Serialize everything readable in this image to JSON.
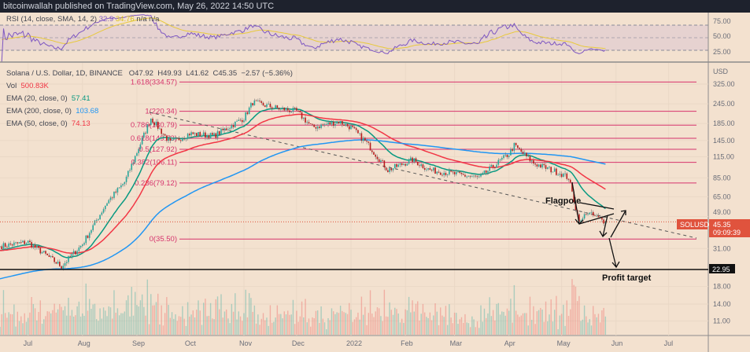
{
  "header": {
    "text": "bitcoinwallah published on TradingView.com, May 26, 2022 14:50 UTC"
  },
  "rsi": {
    "label": "RSI (14, close, SMA, 14, 2)",
    "value": "32.9",
    "sma": "34.76",
    "na1": "n/a",
    "na2": "n/a",
    "ticks": [
      "75.00",
      "50.00",
      "25.00"
    ]
  },
  "legend": {
    "symbol": "Solana / U.S. Dollar, 1D, BINANCE",
    "o": "O47.92",
    "h": "H49.93",
    "l": "L41.62",
    "c": "C45.35",
    "chg": "−2.57 (−5.36%)",
    "vol_label": "Vol",
    "vol_value": "500.83K",
    "ema20_label": "EMA (20, close, 0)",
    "ema20_value": "57.41",
    "ema200_label": "EMA (200, close, 0)",
    "ema200_value": "103.68",
    "ema50_label": "EMA (50, close, 0)",
    "ema50_value": "74.13"
  },
  "colors": {
    "ema20": "#089981",
    "ema200": "#2196f3",
    "ema50": "#f23645",
    "fib": "#d6336c",
    "up": "#26a69a",
    "down": "#b71c1c",
    "tag": "#e0533d"
  },
  "price_tag": {
    "symbol": "SOLUSD",
    "price": "45.35",
    "countdown": "09:09:39"
  },
  "target_tag": "22.95",
  "annotations": {
    "flagpole": "Flagpole",
    "profit": "Profit target"
  },
  "chart_data": {
    "type": "candlestick",
    "title": "Solana / U.S. Dollar, 1D, BINANCE",
    "yscale": "log",
    "ylabel": "USD",
    "yticks": [
      325,
      245,
      185,
      145,
      115,
      85,
      65,
      49,
      31,
      18,
      14,
      11
    ],
    "ytick_labels": [
      "325.00",
      "245.00",
      "185.00",
      "145.00",
      "115.00",
      "85.00",
      "65.00",
      "49.00",
      "31.00",
      "18.00",
      "14.00",
      "11.00"
    ],
    "xtick_labels": [
      "Jul",
      "Aug",
      "Sep",
      "Oct",
      "Nov",
      "Dec",
      "2022",
      "Feb",
      "Mar",
      "Apr",
      "May",
      "Jun",
      "Jul"
    ],
    "close_keypoints": [
      [
        "2021-06-15",
        32
      ],
      [
        "2021-07-01",
        34
      ],
      [
        "2021-07-20",
        24
      ],
      [
        "2021-08-01",
        33
      ],
      [
        "2021-08-15",
        60
      ],
      [
        "2021-08-25",
        80
      ],
      [
        "2021-09-09",
        200
      ],
      [
        "2021-09-20",
        140
      ],
      [
        "2021-10-01",
        160
      ],
      [
        "2021-10-15",
        155
      ],
      [
        "2021-11-01",
        200
      ],
      [
        "2021-11-06",
        250
      ],
      [
        "2021-11-20",
        230
      ],
      [
        "2021-12-01",
        220
      ],
      [
        "2021-12-10",
        175
      ],
      [
        "2021-12-25",
        190
      ],
      [
        "2022-01-01",
        175
      ],
      [
        "2022-01-10",
        140
      ],
      [
        "2022-01-22",
        95
      ],
      [
        "2022-02-05",
        110
      ],
      [
        "2022-02-15",
        95
      ],
      [
        "2022-03-01",
        90
      ],
      [
        "2022-03-15",
        85
      ],
      [
        "2022-04-01",
        120
      ],
      [
        "2022-04-04",
        135
      ],
      [
        "2022-04-15",
        105
      ],
      [
        "2022-05-01",
        90
      ],
      [
        "2022-05-05",
        85
      ],
      [
        "2022-05-10",
        50
      ],
      [
        "2022-05-12",
        45
      ],
      [
        "2022-05-15",
        52
      ],
      [
        "2022-05-26",
        45.35
      ]
    ],
    "fib_levels": [
      {
        "label": "1.618(334.57)",
        "price": 334.57
      },
      {
        "label": "1(220.34)",
        "price": 220.34
      },
      {
        "label": "0.786(180.79)",
        "price": 180.79
      },
      {
        "label": "0.618(149.73)",
        "price": 149.73
      },
      {
        "label": "0.5(127.92)",
        "price": 127.92
      },
      {
        "label": "0.382(106.11)",
        "price": 106.11
      },
      {
        "label": "0.236(79.12)",
        "price": 79.12
      },
      {
        "label": "0(35.50)",
        "price": 35.5
      }
    ],
    "target_price": 22.95
  }
}
